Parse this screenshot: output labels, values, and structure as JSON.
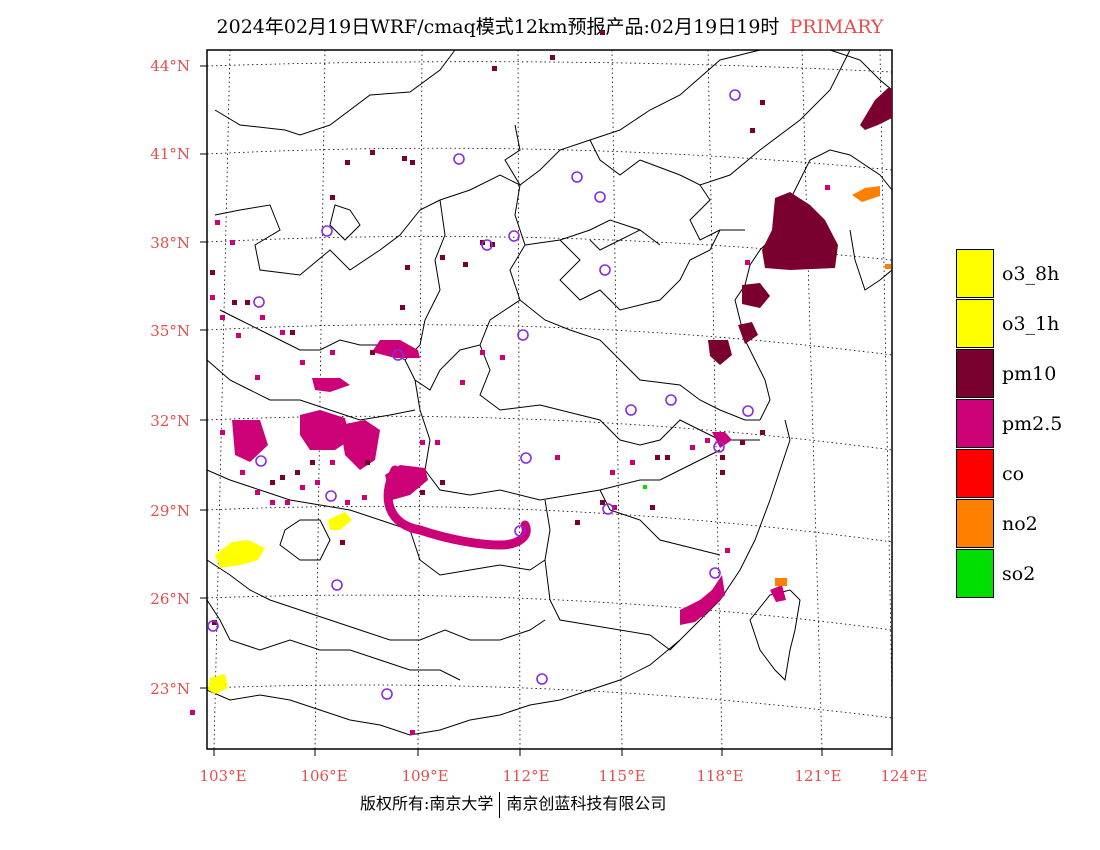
{
  "title": {
    "main": "2024年02月19日WRF/cmaq模式12km预报产品:02月19日19时",
    "pollutant": "PRIMARY"
  },
  "lat_ticks": [
    "44°N",
    "41°N",
    "38°N",
    "35°N",
    "32°N",
    "29°N",
    "26°N",
    "23°N"
  ],
  "lon_ticks": [
    "103°E",
    "106°E",
    "109°E",
    "112°E",
    "115°E",
    "118°E",
    "121°E",
    "124°E"
  ],
  "legend": [
    {
      "label": "o3_8h",
      "color": "#ffff00"
    },
    {
      "label": "o3_1h",
      "color": "#ffff00"
    },
    {
      "label": "pm10",
      "color": "#7a0030"
    },
    {
      "label": "pm2.5",
      "color": "#cc0077"
    },
    {
      "label": "co",
      "color": "#ff0000"
    },
    {
      "label": "no2",
      "color": "#ff7f00"
    },
    {
      "label": "so2",
      "color": "#00dd00"
    }
  ],
  "footer": {
    "left": "版权所有:南京大学",
    "right": "南京创蓝科技有限公司"
  },
  "colors": {
    "pm10": "#7a0030",
    "pm25": "#cc0077",
    "o3": "#ffff00",
    "no2": "#ff7f00",
    "so2": "#00dd00",
    "station": "#8a2be2",
    "tick_text": "#e84c4c"
  }
}
